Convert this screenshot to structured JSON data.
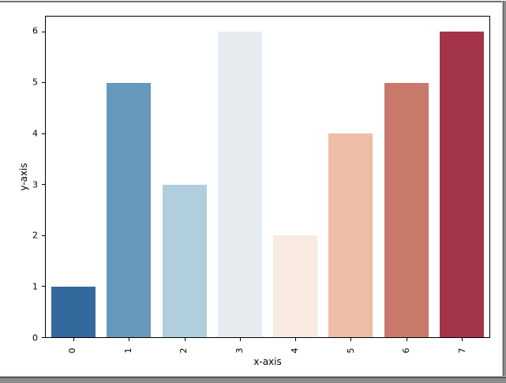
{
  "figure": {
    "background": "#ffffff",
    "frame": {
      "top_color": "#6e6e6e",
      "side_color": "#8c8c8c",
      "bottom_dark": "#555555",
      "bottom_light": "#c4c4c4"
    },
    "spine_color": "#000000"
  },
  "chart_data": {
    "type": "bar",
    "title": "",
    "xlabel": "x-axis",
    "ylabel": "y-axis",
    "categories": [
      "0",
      "1",
      "2",
      "3",
      "4",
      "5",
      "6",
      "7"
    ],
    "values": [
      1,
      5,
      3,
      6,
      2,
      4,
      5,
      6
    ],
    "bar_colors": [
      "#34699e",
      "#6699bb",
      "#b1cedf",
      "#e6ebf0",
      "#f9eae2",
      "#eebda6",
      "#c9796a",
      "#a43447"
    ],
    "y_ticks": [
      "0",
      "1",
      "2",
      "3",
      "4",
      "5",
      "6"
    ],
    "ylim": [
      0,
      6.3
    ],
    "bar_width_fraction": 0.8,
    "x_tick_rotation_deg": 90,
    "grid": false,
    "legend": "none"
  }
}
